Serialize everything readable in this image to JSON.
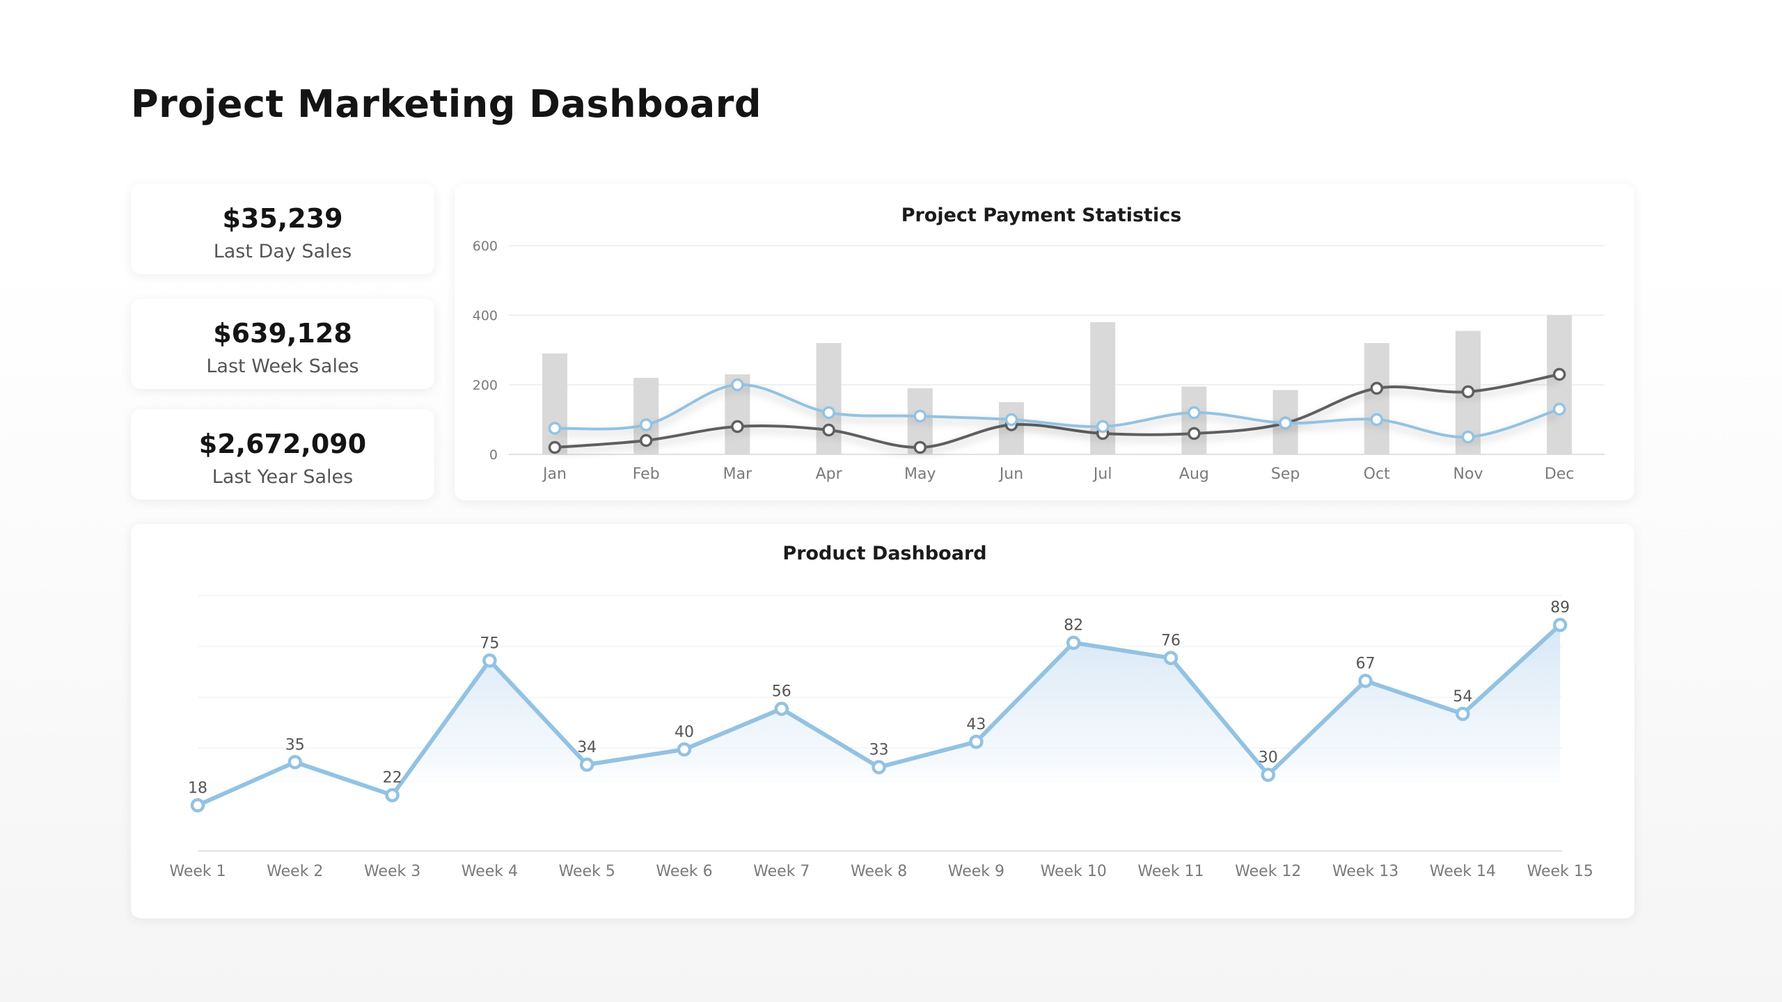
{
  "page": {
    "title": "Project Marketing Dashboard"
  },
  "kpis": [
    {
      "value": "$35,239",
      "label": "Last Day Sales"
    },
    {
      "value": "$639,128",
      "label": "Last Week Sales"
    },
    {
      "value": "$2,672,090",
      "label": "Last Year Sales"
    }
  ],
  "colors": {
    "bar": "#d9d9d9",
    "line_dark": "#5f5f5f",
    "line_light": "#93c2e2",
    "grid": "#ececec",
    "axis": "#e1e1e1"
  },
  "chart_data": [
    {
      "type": "bar",
      "title": "Project Payment Statistics",
      "categories": [
        "Jan",
        "Feb",
        "Mar",
        "Apr",
        "May",
        "Jun",
        "Jul",
        "Aug",
        "Sep",
        "Oct",
        "Nov",
        "Dec"
      ],
      "ylim": [
        0,
        600
      ],
      "yticks": [
        0,
        200,
        400,
        600
      ],
      "grid": true,
      "series": [
        {
          "type": "bar",
          "values": [
            290,
            220,
            230,
            320,
            190,
            150,
            380,
            195,
            185,
            320,
            355,
            400
          ]
        },
        {
          "type": "line",
          "values": [
            20,
            40,
            80,
            70,
            20,
            85,
            60,
            60,
            90,
            190,
            180,
            230
          ]
        },
        {
          "type": "line",
          "values": [
            75,
            85,
            200,
            120,
            110,
            100,
            80,
            120,
            90,
            100,
            50,
            130
          ]
        }
      ]
    },
    {
      "type": "area",
      "title": "Product Dashboard",
      "categories": [
        "Week 1",
        "Week 2",
        "Week 3",
        "Week 4",
        "Week 5",
        "Week 6",
        "Week 7",
        "Week 8",
        "Week  9",
        "Week 10",
        "Week 11",
        "Week 12",
        "Week 13",
        "Week 14",
        "Week 15"
      ],
      "values": [
        18,
        35,
        22,
        75,
        34,
        40,
        56,
        33,
        43,
        82,
        76,
        30,
        67,
        54,
        89
      ],
      "ylim": [
        0,
        100
      ],
      "grid": true
    }
  ]
}
